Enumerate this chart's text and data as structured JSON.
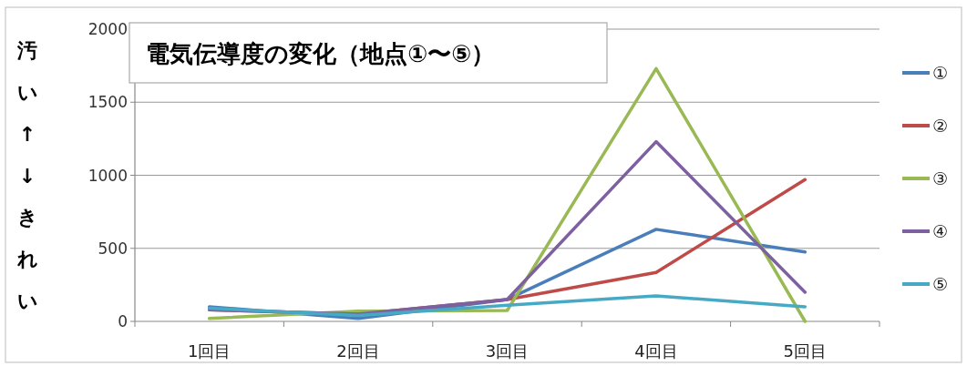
{
  "chart_data": {
    "type": "line",
    "title": "電気伝導度の変化（地点①〜⑤）",
    "ylabel": "汚い↑↓きれい",
    "categories": [
      "1回目",
      "2回目",
      "3回目",
      "4回目",
      "5回目"
    ],
    "series": [
      {
        "name": "①",
        "color": "#4a7ebb",
        "values": [
          100,
          20,
          150,
          630,
          475
        ]
      },
      {
        "name": "②",
        "color": "#be4b48",
        "values": [
          80,
          50,
          150,
          335,
          970
        ]
      },
      {
        "name": "③",
        "color": "#98b954",
        "values": [
          20,
          70,
          75,
          1730,
          0
        ]
      },
      {
        "name": "④",
        "color": "#7d60a0",
        "values": [
          80,
          50,
          150,
          1230,
          200
        ]
      },
      {
        "name": "⑤",
        "color": "#46aac5",
        "values": [
          90,
          40,
          110,
          175,
          100
        ]
      }
    ],
    "ylim": [
      0,
      2000
    ],
    "yticks": [
      0,
      500,
      1000,
      1500,
      2000
    ],
    "grid": "y",
    "legend": "right"
  }
}
